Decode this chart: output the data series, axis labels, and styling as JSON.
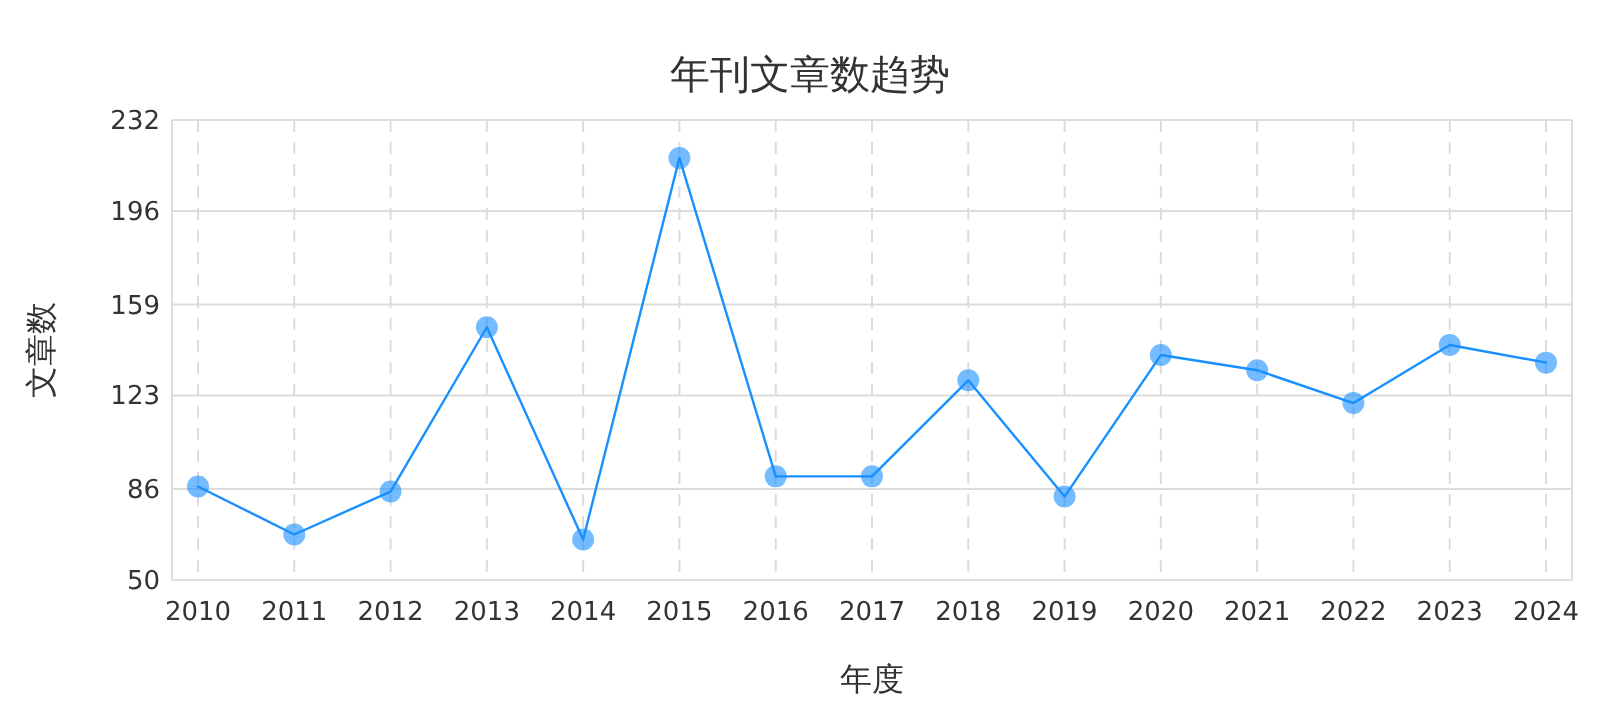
{
  "chart_data": {
    "type": "line",
    "title": "年刊文章数趋势",
    "xlabel": "年度",
    "ylabel": "文章数",
    "categories": [
      "2010",
      "2011",
      "2012",
      "2013",
      "2014",
      "2015",
      "2016",
      "2017",
      "2018",
      "2019",
      "2020",
      "2021",
      "2022",
      "2023",
      "2024"
    ],
    "series": [
      {
        "color": "#1890ff",
        "values": [
          87,
          68,
          85,
          150,
          66,
          217,
          91,
          91,
          129,
          83,
          139,
          133,
          120,
          143,
          136
        ]
      }
    ],
    "ylim": [
      50,
      232
    ],
    "yticks": [
      50,
      86,
      123,
      159,
      196,
      232
    ],
    "grid": true,
    "marker": "circle",
    "line_style": "solid"
  }
}
